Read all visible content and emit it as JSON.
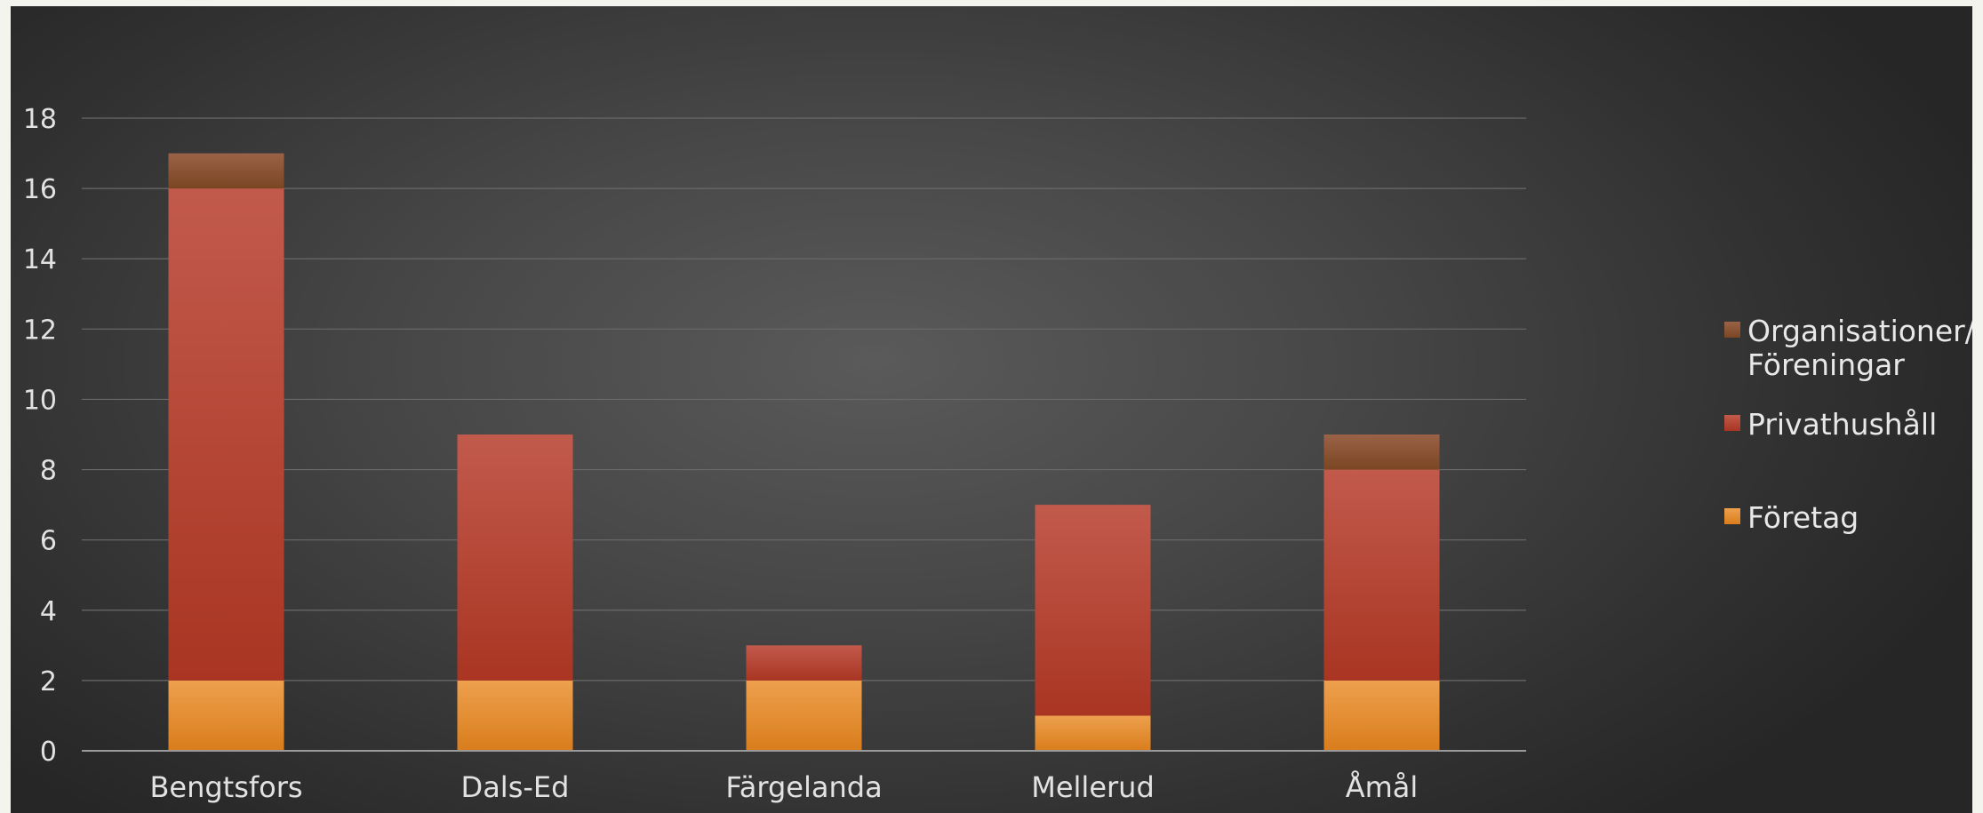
{
  "chart_data": {
    "type": "bar",
    "stacked": true,
    "title": "",
    "xlabel": "",
    "ylabel": "",
    "categories": [
      "Bengtsfors",
      "Dals-Ed",
      "Färgelanda",
      "Mellerud",
      "Åmål"
    ],
    "ylim": [
      0,
      18
    ],
    "yticks": [
      0,
      2,
      4,
      6,
      8,
      10,
      12,
      14,
      16,
      18
    ],
    "grid": true,
    "legend_position": "right",
    "series": [
      {
        "name": "Företag",
        "values": [
          2,
          2,
          2,
          1,
          2
        ],
        "color": "#e8892a"
      },
      {
        "name": "Privathushåll",
        "values": [
          14,
          7,
          1,
          6,
          6
        ],
        "color": "#b8402e"
      },
      {
        "name": "Organisationer/ Föreningar",
        "legend_lines": [
          "Organisationer/",
          "Föreningar"
        ],
        "values": [
          1,
          0,
          0,
          0,
          1
        ],
        "color": "#8a5231"
      }
    ],
    "legend_order": [
      2,
      1,
      0
    ]
  }
}
